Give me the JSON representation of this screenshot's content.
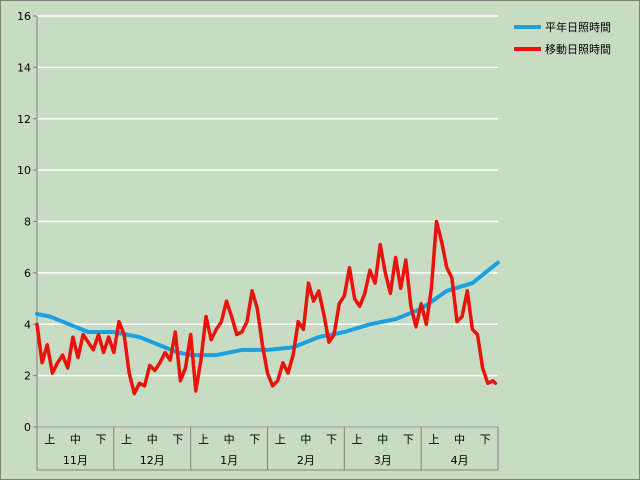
{
  "chart_data": {
    "type": "line",
    "title": "",
    "xlabel": "",
    "ylabel": "",
    "ylim": [
      0,
      16
    ],
    "yticks": [
      0,
      2,
      4,
      6,
      8,
      10,
      12,
      14,
      16
    ],
    "grid": true,
    "legend_position": "top-right",
    "months": [
      "11月",
      "12月",
      "1月",
      "2月",
      "3月",
      "4月"
    ],
    "thirds": [
      "上",
      "中",
      "下"
    ],
    "x_index_range": [
      0,
      180
    ],
    "series": [
      {
        "name": "平年日照時間",
        "color": "#1ba1e2",
        "x": [
          0,
          5,
          10,
          15,
          20,
          30,
          40,
          45,
          50,
          55,
          60,
          70,
          80,
          90,
          100,
          110,
          120,
          130,
          140,
          150,
          160,
          170,
          180
        ],
        "values": [
          4.4,
          4.3,
          4.1,
          3.9,
          3.7,
          3.7,
          3.5,
          3.3,
          3.1,
          2.9,
          2.8,
          2.8,
          3.0,
          3.0,
          3.1,
          3.5,
          3.7,
          4.0,
          4.2,
          4.6,
          5.3,
          5.6,
          6.4
        ]
      },
      {
        "name": "移動日照時間",
        "color": "#e8140c",
        "x": [
          0,
          2,
          4,
          6,
          8,
          10,
          12,
          14,
          16,
          18,
          20,
          22,
          24,
          26,
          28,
          30,
          32,
          34,
          36,
          38,
          40,
          42,
          44,
          46,
          48,
          50,
          52,
          54,
          56,
          58,
          60,
          62,
          64,
          66,
          68,
          70,
          72,
          74,
          76,
          78,
          80,
          82,
          84,
          86,
          88,
          90,
          92,
          94,
          96,
          98,
          100,
          102,
          104,
          106,
          108,
          110,
          112,
          114,
          116,
          118,
          120,
          122,
          124,
          126,
          128,
          130,
          132,
          134,
          136,
          138,
          140,
          142,
          144,
          146,
          148,
          150,
          152,
          154,
          156,
          158,
          160,
          162,
          164,
          166,
          168,
          170,
          172,
          174,
          176,
          178,
          179
        ],
        "values": [
          4.0,
          2.5,
          3.2,
          2.1,
          2.5,
          2.8,
          2.3,
          3.5,
          2.7,
          3.6,
          3.3,
          3.0,
          3.6,
          2.9,
          3.5,
          2.9,
          4.1,
          3.6,
          2.1,
          1.3,
          1.7,
          1.6,
          2.4,
          2.2,
          2.5,
          2.9,
          2.6,
          3.7,
          1.8,
          2.3,
          3.6,
          1.4,
          2.6,
          4.3,
          3.4,
          3.8,
          4.1,
          4.9,
          4.3,
          3.6,
          3.7,
          4.1,
          5.3,
          4.6,
          3.2,
          2.1,
          1.6,
          1.8,
          2.5,
          2.1,
          2.8,
          4.1,
          3.8,
          5.6,
          4.9,
          5.3,
          4.4,
          3.3,
          3.6,
          4.8,
          5.1,
          6.2,
          5.0,
          4.7,
          5.2,
          6.1,
          5.6,
          7.1,
          6.0,
          5.2,
          6.6,
          5.4,
          6.5,
          4.7,
          3.9,
          4.8,
          4.0,
          5.4,
          8.0,
          7.2,
          6.2,
          5.8,
          4.1,
          4.3,
          5.3,
          3.8,
          3.6,
          2.3,
          1.7,
          1.8,
          1.7
        ]
      }
    ]
  }
}
